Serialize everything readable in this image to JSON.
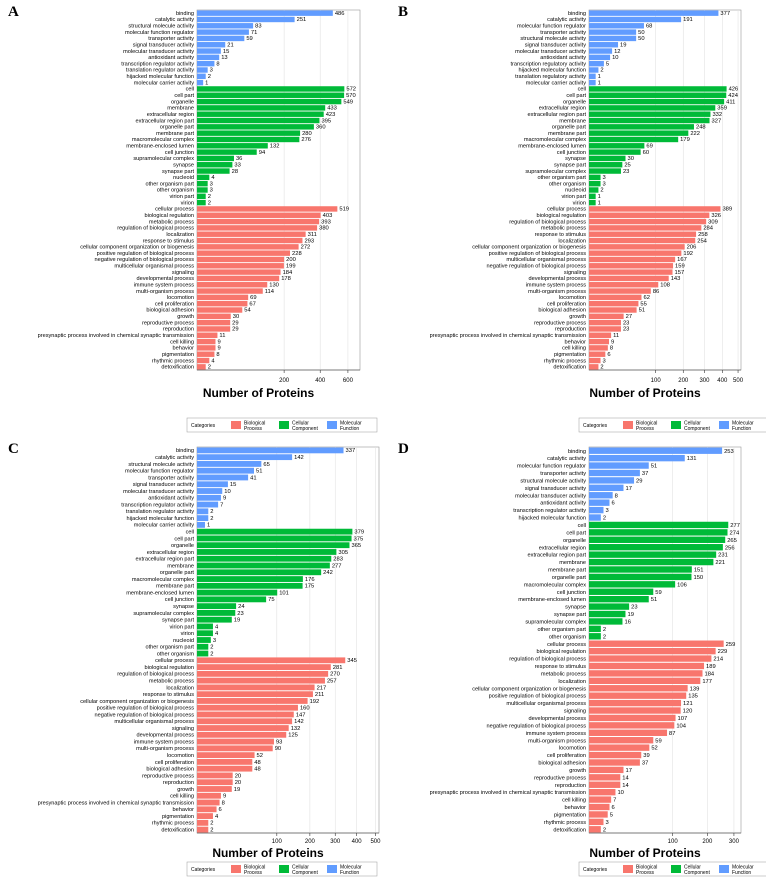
{
  "colors": {
    "biological": "#F8766D",
    "cellular": "#00BA38",
    "molecular": "#619CFF"
  },
  "legend": {
    "title": "Categories",
    "entries": [
      "Biological Process",
      "Cellular Component",
      "Molecular Function"
    ]
  },
  "chart_data": [
    {
      "panel": "A",
      "type": "bar",
      "orientation": "horizontal",
      "xlabel": "Number of Proteins",
      "xscale": "sqrt",
      "xlim": [
        0,
        700
      ],
      "xticks": [
        200,
        400,
        600
      ],
      "series": [
        {
          "name": "Molecular Function",
          "categories": [
            "binding",
            "catalytic activity",
            "structural molecule activity",
            "molecular function regulator",
            "transporter activity",
            "signal transducer activity",
            "molecular transducer activity",
            "antioxidant activity",
            "transcription regulator activity",
            "translation regulator activity",
            "hijacked molecular function",
            "molecular carrier activity"
          ],
          "values": [
            486,
            251,
            83,
            71,
            59,
            21,
            15,
            13,
            8,
            3,
            2,
            1
          ]
        },
        {
          "name": "Cellular Component",
          "categories": [
            "cell",
            "cell part",
            "organelle",
            "membrane",
            "extracellular region",
            "extracellular region part",
            "organelle part",
            "membrane part",
            "macromolecular complex",
            "membrane-enclosed lumen",
            "cell junction",
            "supramolecular complex",
            "synapse",
            "synapse part",
            "nucleoid",
            "other organism part",
            "other organism",
            "virion part",
            "virion"
          ],
          "values": [
            572,
            570,
            549,
            433,
            423,
            395,
            360,
            280,
            276,
            132,
            94,
            36,
            33,
            28,
            4,
            3,
            3,
            2,
            2
          ]
        },
        {
          "name": "Biological Process",
          "categories": [
            "cellular process",
            "biological regulation",
            "metabolic process",
            "regulation of biological process",
            "localization",
            "response to stimulus",
            "cellular component organization or biogenesis",
            "positive regulation of biological process",
            "negative regulation of biological process",
            "multicellular organismal process",
            "signaling",
            "developmental process",
            "immune system process",
            "multi-organism process",
            "locomotion",
            "cell proliferation",
            "biological adhesion",
            "growth",
            "reproductive process",
            "reproduction",
            "presynaptic process involved in chemical synaptic transmission",
            "cell killing",
            "behavior",
            "pigmentation",
            "rhythmic process",
            "detoxification"
          ],
          "values": [
            519,
            403,
            393,
            380,
            311,
            293,
            272,
            228,
            200,
            199,
            184,
            178,
            130,
            114,
            69,
            67,
            54,
            30,
            29,
            29,
            11,
            9,
            9,
            8,
            4,
            2
          ]
        }
      ]
    },
    {
      "panel": "B",
      "type": "bar",
      "orientation": "horizontal",
      "xlabel": "Number of Proteins",
      "xscale": "sqrt",
      "xlim": [
        0,
        520
      ],
      "xticks": [
        100,
        200,
        300,
        400,
        500
      ],
      "series": [
        {
          "name": "Molecular Function",
          "categories": [
            "binding",
            "catalytic activity",
            "molecular function regulator",
            "transporter activity",
            "structural molecule activity",
            "signal transducer activity",
            "molecular transducer activity",
            "antioxidant activity",
            "transcription regulatory activity",
            "hijacked molecular function",
            "translation regulatory activity",
            "molecular carrier activity"
          ],
          "values": [
            377,
            191,
            68,
            50,
            50,
            19,
            12,
            10,
            5,
            2,
            1,
            1
          ]
        },
        {
          "name": "Cellular Component",
          "categories": [
            "cell",
            "cell part",
            "organelle",
            "extracellular region",
            "extracellular region part",
            "membrane",
            "organelle part",
            "membrane part",
            "macromolecular complex",
            "membrane-enclosed lumen",
            "cell junction",
            "synapse",
            "synapse part",
            "supramolecular complex",
            "other organism part",
            "other organism",
            "nucleoid",
            "virion part",
            "virion"
          ],
          "values": [
            426,
            424,
            411,
            359,
            332,
            327,
            248,
            222,
            179,
            69,
            60,
            30,
            25,
            23,
            3,
            3,
            2,
            1,
            1
          ]
        },
        {
          "name": "Biological Process",
          "categories": [
            "cellular process",
            "biological regulation",
            "regulation of biological process",
            "metabolic process",
            "response to stimulus",
            "localization",
            "cellular component organization or biogenesis",
            "positive regulation of biological process",
            "multicellular organismal process",
            "negative regulation of biological process",
            "signaling",
            "developmental process",
            "immune system process",
            "multi-organism process",
            "locomotion",
            "cell proliferation",
            "biological adhesion",
            "growth",
            "reproductive process",
            "reproduction",
            "presynaptic process involved in chemical synaptic transmission",
            "behavior",
            "cell killing",
            "pigmentation",
            "rhythmic process",
            "detoxification"
          ],
          "values": [
            389,
            326,
            309,
            284,
            258,
            254,
            206,
            192,
            167,
            159,
            157,
            143,
            108,
            86,
            62,
            55,
            51,
            27,
            23,
            23,
            11,
            9,
            8,
            6,
            3,
            2
          ]
        }
      ]
    },
    {
      "panel": "C",
      "type": "bar",
      "orientation": "horizontal",
      "xlabel": "Number of Proteins",
      "xscale": "sqrt",
      "xlim": [
        0,
        520
      ],
      "xticks": [
        100,
        200,
        300,
        400,
        500
      ],
      "series": [
        {
          "name": "Molecular Function",
          "categories": [
            "binding",
            "catalytic activity",
            "structural molecule activity",
            "molecular function regulator",
            "transporter activity",
            "signal transducer activity",
            "molecular transducer activity",
            "antioxidant activity",
            "transcription regulator activity",
            "translation regulator activity",
            "hijacked molecular function",
            "molecular carrier activity"
          ],
          "values": [
            337,
            142,
            65,
            51,
            41,
            15,
            10,
            9,
            7,
            2,
            2,
            1
          ]
        },
        {
          "name": "Cellular Component",
          "categories": [
            "cell",
            "cell part",
            "organelle",
            "extracellular region",
            "extracellular region part",
            "membrane",
            "organelle part",
            "macromolecular complex",
            "membrane part",
            "membrane-enclosed lumen",
            "cell junction",
            "synapse",
            "supramolecular complex",
            "synapse part",
            "virion part",
            "virion",
            "nucleoid",
            "other organism part",
            "other organism"
          ],
          "values": [
            379,
            375,
            365,
            305,
            283,
            277,
            242,
            176,
            175,
            101,
            75,
            24,
            23,
            19,
            4,
            4,
            3,
            2,
            2
          ]
        },
        {
          "name": "Biological Process",
          "categories": [
            "cellular process",
            "biological regulation",
            "regulation of biological process",
            "metabolic process",
            "localization",
            "response to stimulus",
            "cellular component organization or biogenesis",
            "positive regulation of biological process",
            "negative regulation of biological process",
            "multicellular organismal process",
            "signaling",
            "developmental process",
            "immune system process",
            "multi-organism process",
            "locomotion",
            "cell proliferation",
            "biological adhesion",
            "reproductive process",
            "reproduction",
            "growth",
            "cell killing",
            "presynaptic process involved in chemical synaptic transmission",
            "behavior",
            "pigmentation",
            "rhythmic process",
            "detoxification"
          ],
          "values": [
            345,
            281,
            270,
            257,
            217,
            211,
            192,
            160,
            147,
            142,
            132,
            125,
            93,
            90,
            52,
            48,
            48,
            20,
            20,
            19,
            9,
            8,
            6,
            4,
            2,
            2
          ]
        }
      ]
    },
    {
      "panel": "D",
      "type": "bar",
      "orientation": "horizontal",
      "xlabel": "Number of Proteins",
      "xscale": "sqrt",
      "xlim": [
        0,
        330
      ],
      "xticks": [
        100,
        200,
        300
      ],
      "series": [
        {
          "name": "Molecular Function",
          "categories": [
            "binding",
            "catalytic activity",
            "molecular function regulator",
            "transporter activity",
            "structural molecule activity",
            "signal transducer activity",
            "molecular transducer activity",
            "antioxidant activity",
            "transcription regulator activity",
            "hijacked molecular function"
          ],
          "values": [
            253,
            131,
            51,
            37,
            29,
            17,
            8,
            6,
            3,
            2
          ]
        },
        {
          "name": "Cellular Component",
          "categories": [
            "cell",
            "cell part",
            "organelle",
            "extracellular region",
            "extracellular region part",
            "membrane",
            "membrane part",
            "organelle part",
            "macromolecular complex",
            "cell junction",
            "membrane-enclosed lumen",
            "synapse",
            "synapse part",
            "supramolecular complex",
            "other organism part",
            "other organism"
          ],
          "values": [
            277,
            274,
            265,
            256,
            231,
            221,
            151,
            150,
            106,
            59,
            51,
            23,
            19,
            16,
            2,
            2
          ]
        },
        {
          "name": "Biological Process",
          "categories": [
            "cellular process",
            "biological regulation",
            "regulation of biological process",
            "response to stimulus",
            "metabolic process",
            "localization",
            "cellular component organization or biogenesis",
            "positive regulation of biological process",
            "multicellular organismal process",
            "signaling",
            "developmental process",
            "negative regulation of biological process",
            "immune system process",
            "multi-organism process",
            "locomotion",
            "cell proliferation",
            "biological adhesion",
            "growth",
            "reproductive process",
            "reproduction",
            "presynaptic process involved in chemical synaptic transmission",
            "cell killing",
            "behavior",
            "pigmentation",
            "rhythmic process",
            "detoxification"
          ],
          "values": [
            259,
            229,
            214,
            189,
            184,
            177,
            139,
            135,
            121,
            120,
            107,
            104,
            87,
            59,
            52,
            39,
            37,
            17,
            14,
            14,
            10,
            7,
            6,
            5,
            3,
            2
          ]
        }
      ]
    }
  ]
}
